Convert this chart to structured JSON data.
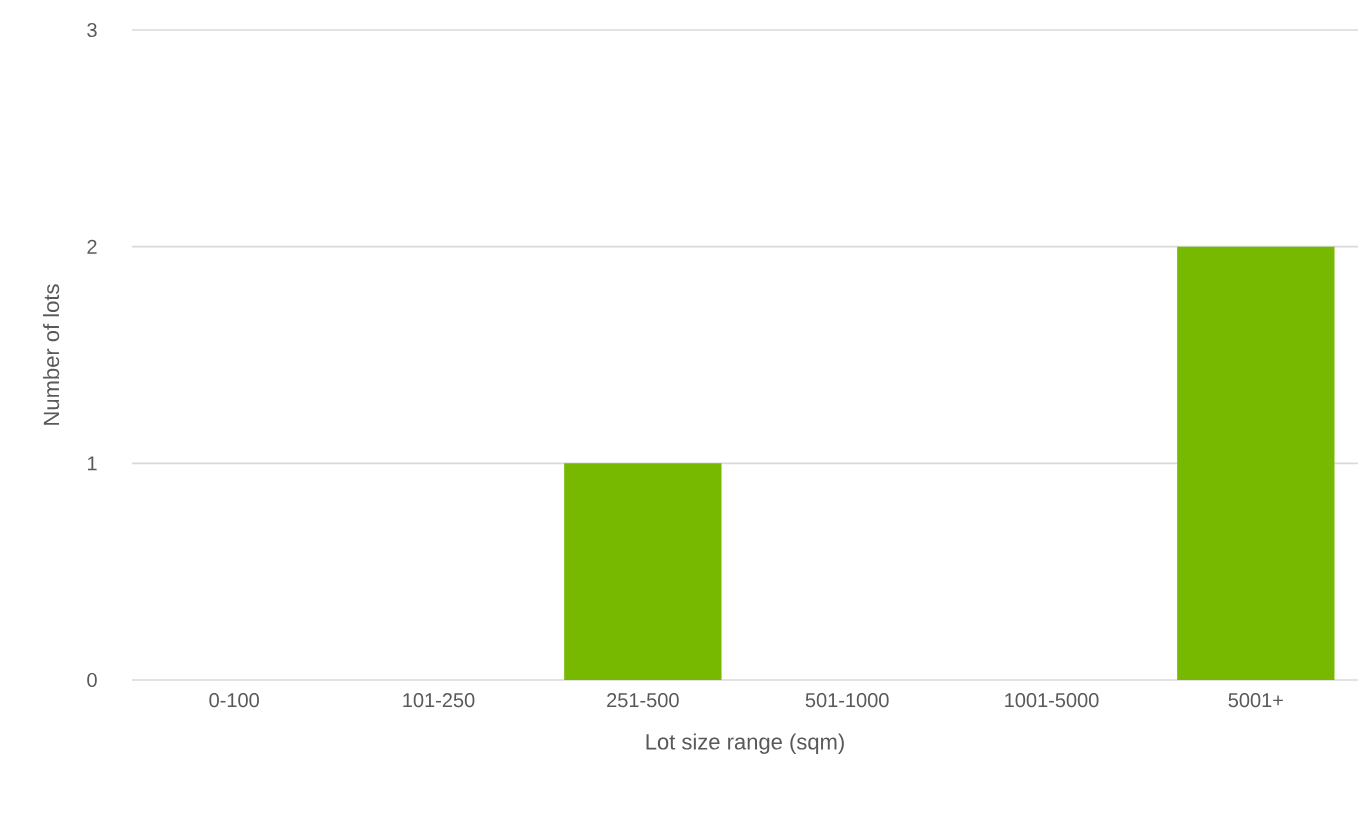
{
  "chart_data": {
    "type": "bar",
    "xlabel": "Lot size range (sqm)",
    "ylabel": "Number of lots",
    "categories": [
      "0-100",
      "101-250",
      "251-500",
      "501-1000",
      "1001-5000",
      "5001+"
    ],
    "values": [
      0,
      0,
      1,
      0,
      0,
      2
    ],
    "color": "#76b900",
    "ylim": [
      0,
      3
    ],
    "yticks": [
      0,
      1,
      2,
      3
    ],
    "grid": "y"
  }
}
